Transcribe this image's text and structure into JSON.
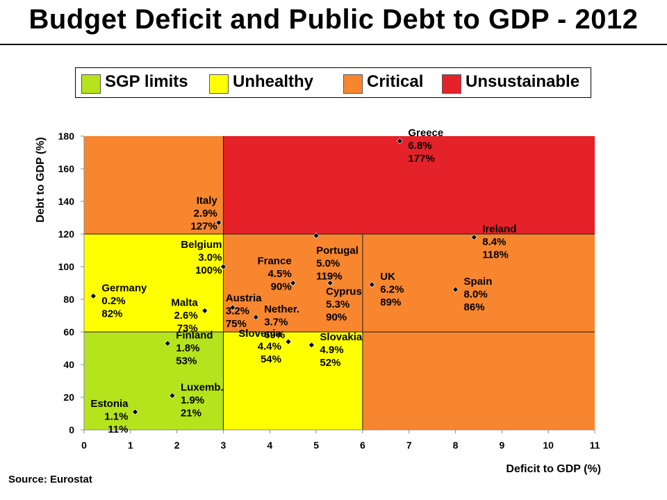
{
  "title": "Budget Deficit and Public Debt to GDP - 2012",
  "source": "Source: Eurostat",
  "legend": [
    {
      "label": "SGP limits",
      "color": "#b5e31c"
    },
    {
      "label": "Unhealthy",
      "color": "#ffff00"
    },
    {
      "label": "Critical",
      "color": "#f7862f"
    },
    {
      "label": "Unsustainable",
      "color": "#e52229"
    }
  ],
  "chart_data": {
    "type": "scatter",
    "title": "Budget Deficit and Public Debt to GDP - 2012",
    "xlabel": "Deficit to GDP (%)",
    "ylabel": "Debt to GDP (%)",
    "xlim": [
      0,
      11
    ],
    "ylim": [
      0,
      180
    ],
    "xticks": [
      0,
      1,
      2,
      3,
      4,
      5,
      6,
      7,
      8,
      9,
      10,
      11
    ],
    "yticks": [
      0,
      20,
      40,
      60,
      80,
      100,
      120,
      140,
      160,
      180
    ],
    "regions": [
      {
        "x": [
          0,
          3
        ],
        "y": [
          0,
          60
        ],
        "color": "#b5e31c"
      },
      {
        "x": [
          3,
          6
        ],
        "y": [
          0,
          60
        ],
        "color": "#ffff00"
      },
      {
        "x": [
          6,
          11
        ],
        "y": [
          0,
          60
        ],
        "color": "#f7862f"
      },
      {
        "x": [
          0,
          3
        ],
        "y": [
          60,
          120
        ],
        "color": "#ffff00"
      },
      {
        "x": [
          3,
          6
        ],
        "y": [
          60,
          120
        ],
        "color": "#f7862f"
      },
      {
        "x": [
          6,
          11
        ],
        "y": [
          60,
          120
        ],
        "color": "#f7862f"
      },
      {
        "x": [
          0,
          3
        ],
        "y": [
          120,
          180
        ],
        "color": "#f7862f"
      },
      {
        "x": [
          3,
          11
        ],
        "y": [
          120,
          180
        ],
        "color": "#e52229"
      }
    ],
    "points": [
      {
        "name": "Greece",
        "x": 6.8,
        "y": 177,
        "deficit": "6.8%",
        "debt": "177%",
        "anchor": "start",
        "offset": "right"
      },
      {
        "name": "Italy",
        "x": 2.9,
        "y": 127,
        "deficit": "2.9%",
        "debt": "127%",
        "anchor": "end",
        "offset": "left-up"
      },
      {
        "name": "Portugal",
        "x": 5.0,
        "y": 119,
        "deficit": "5.0%",
        "debt": "119%",
        "anchor": "start",
        "offset": "right-down"
      },
      {
        "name": "Ireland",
        "x": 8.4,
        "y": 118,
        "deficit": "8.4%",
        "debt": "118%",
        "anchor": "start",
        "offset": "right"
      },
      {
        "name": "Belgium",
        "x": 3.0,
        "y": 100,
        "deficit": "3.0%",
        "debt": "100%",
        "anchor": "end",
        "offset": "left-up"
      },
      {
        "name": "France",
        "x": 4.5,
        "y": 90,
        "deficit": "4.5%",
        "debt": "90%",
        "anchor": "end",
        "offset": "left-up"
      },
      {
        "name": "Cyprus",
        "x": 5.3,
        "y": 90,
        "deficit": "5.3%",
        "debt": "90%",
        "anchor": "start",
        "offset": "below"
      },
      {
        "name": "UK",
        "x": 6.2,
        "y": 89,
        "deficit": "6.2%",
        "debt": "89%",
        "anchor": "start",
        "offset": "right"
      },
      {
        "name": "Spain",
        "x": 8.0,
        "y": 86,
        "deficit": "8.0%",
        "debt": "86%",
        "anchor": "start",
        "offset": "right"
      },
      {
        "name": "Germany",
        "x": 0.2,
        "y": 82,
        "deficit": "0.2%",
        "debt": "82%",
        "anchor": "start",
        "offset": "right"
      },
      {
        "name": "Austria",
        "x": 3.2,
        "y": 75,
        "deficit": "3.2%",
        "debt": "75%",
        "anchor": "start",
        "offset": "right-up"
      },
      {
        "name": "Malta",
        "x": 2.6,
        "y": 73,
        "deficit": "2.6%",
        "debt": "73%",
        "anchor": "end",
        "offset": "left"
      },
      {
        "name": "Nether.",
        "x": 3.7,
        "y": 69,
        "deficit": "3.7%",
        "debt": "69%",
        "anchor": "start",
        "offset": "right"
      },
      {
        "name": "Slovenia",
        "x": 4.4,
        "y": 54,
        "deficit": "4.4%",
        "debt": "54%",
        "anchor": "end",
        "offset": "left"
      },
      {
        "name": "Finland",
        "x": 1.8,
        "y": 53,
        "deficit": "1.8%",
        "debt": "53%",
        "anchor": "start",
        "offset": "right"
      },
      {
        "name": "Slovakia",
        "x": 4.9,
        "y": 52,
        "deficit": "4.9%",
        "debt": "52%",
        "anchor": "start",
        "offset": "right"
      },
      {
        "name": "Luxemb.",
        "x": 1.9,
        "y": 21,
        "deficit": "1.9%",
        "debt": "21%",
        "anchor": "start",
        "offset": "right"
      },
      {
        "name": "Estonia",
        "x": 1.1,
        "y": 11,
        "deficit": "1.1%",
        "debt": "11%",
        "anchor": "end",
        "offset": "left"
      }
    ]
  }
}
